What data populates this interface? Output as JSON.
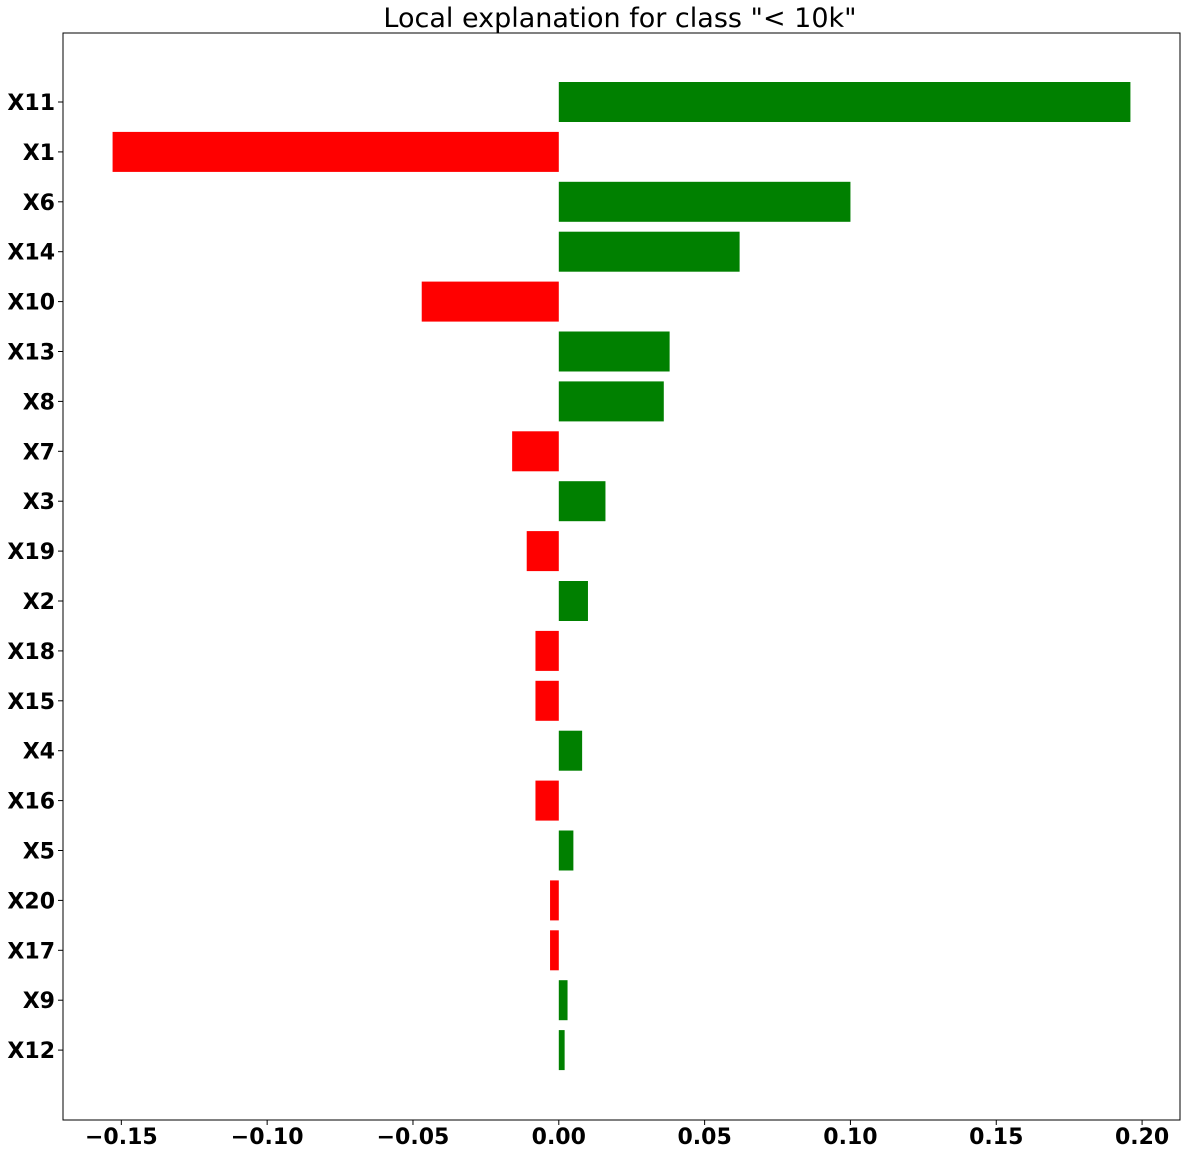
{
  "chart_data": {
    "type": "bar",
    "orientation": "horizontal",
    "title": "Local explanation for class \"< 10k\"",
    "xlabel": "",
    "ylabel": "",
    "categories": [
      "X11",
      "X1",
      "X6",
      "X14",
      "X10",
      "X13",
      "X8",
      "X7",
      "X3",
      "X19",
      "X2",
      "X18",
      "X15",
      "X4",
      "X16",
      "X5",
      "X20",
      "X17",
      "X9",
      "X12"
    ],
    "values": [
      0.196,
      -0.153,
      0.1,
      0.062,
      -0.047,
      0.038,
      0.036,
      -0.016,
      0.016,
      -0.011,
      0.01,
      -0.008,
      -0.008,
      0.008,
      -0.008,
      0.005,
      -0.003,
      -0.003,
      0.003,
      0.002
    ],
    "xlim": [
      -0.17,
      0.213
    ],
    "xticks": [
      -0.15,
      -0.1,
      -0.05,
      0.0,
      0.05,
      0.1,
      0.15,
      0.2
    ],
    "xtick_labels": [
      "−0.15",
      "−0.10",
      "−0.05",
      "0.00",
      "0.05",
      "0.10",
      "0.15",
      "0.20"
    ],
    "positive_color": "#008000",
    "negative_color": "#ff0000",
    "grid": false,
    "legend": "none"
  }
}
